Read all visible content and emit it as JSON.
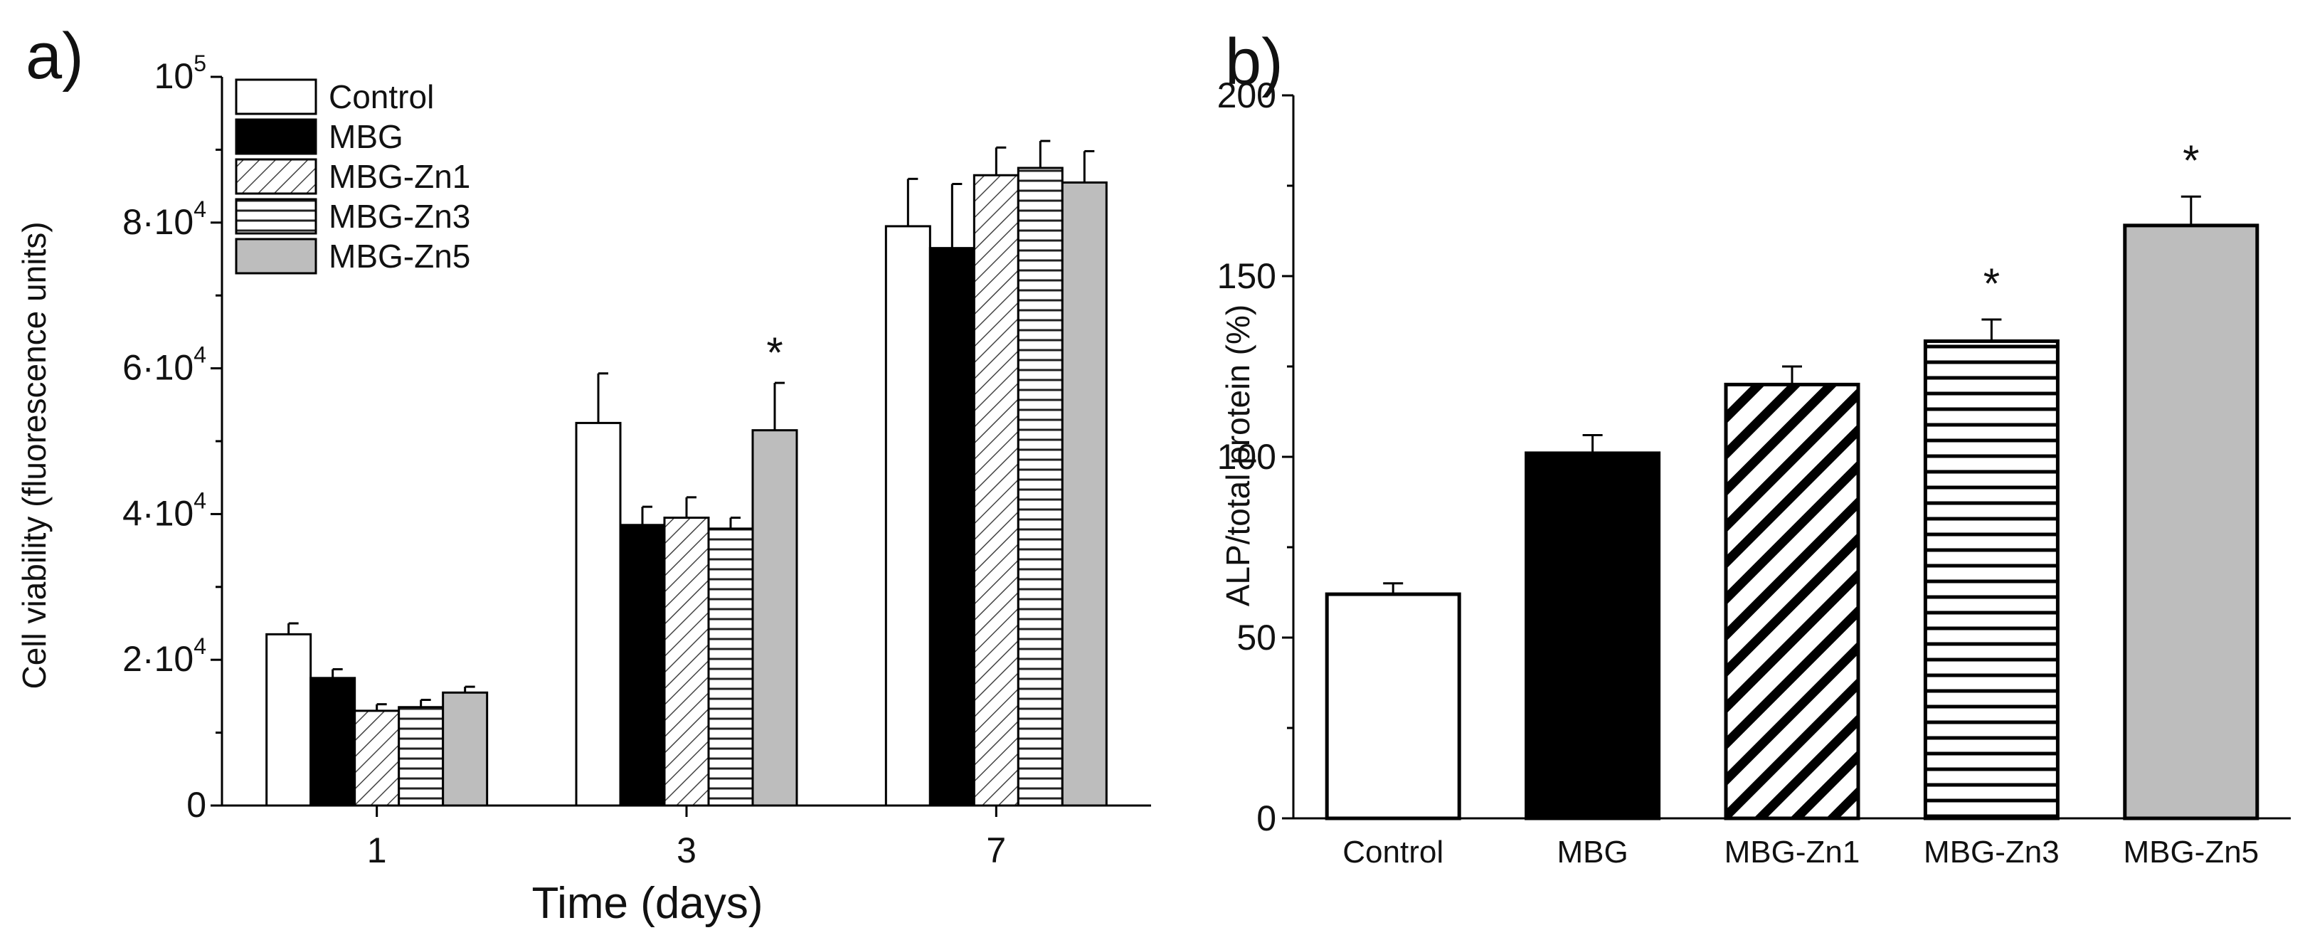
{
  "panels": {
    "a": {
      "label": "a)"
    },
    "b": {
      "label": "b)"
    }
  },
  "chart_data": [
    {
      "type": "bar",
      "panel": "a",
      "xlabel": "Time (days)",
      "ylabel": "Cell viability (fluorescence units)",
      "ylim": [
        0,
        100000
      ],
      "yticks": [
        {
          "value": 0,
          "mantissa": "0",
          "exp": ""
        },
        {
          "value": 20000,
          "mantissa": "2·10",
          "exp": "4"
        },
        {
          "value": 40000,
          "mantissa": "4·10",
          "exp": "4"
        },
        {
          "value": 60000,
          "mantissa": "6·10",
          "exp": "4"
        },
        {
          "value": 80000,
          "mantissa": "8·10",
          "exp": "4"
        },
        {
          "value": 100000,
          "mantissa": "10",
          "exp": "5"
        }
      ],
      "categories": [
        "1",
        "3",
        "7"
      ],
      "series": [
        {
          "name": "Control",
          "fill": "white",
          "values": [
            23500,
            52500,
            79500
          ],
          "errors": [
            1500,
            6800,
            6500
          ]
        },
        {
          "name": "MBG",
          "fill": "black",
          "values": [
            17500,
            38500,
            76500
          ],
          "errors": [
            1200,
            2500,
            8800
          ]
        },
        {
          "name": "MBG-Zn1",
          "fill": "diag",
          "values": [
            13000,
            39500,
            86500
          ],
          "errors": [
            900,
            2800,
            3800
          ]
        },
        {
          "name": "MBG-Zn3",
          "fill": "horiz",
          "values": [
            13500,
            38000,
            87500
          ],
          "errors": [
            1000,
            1500,
            3700
          ]
        },
        {
          "name": "MBG-Zn5",
          "fill": "gray",
          "values": [
            15500,
            51500,
            85500
          ],
          "errors": [
            800,
            6500,
            4300
          ]
        }
      ],
      "annotations": [
        {
          "text": "*",
          "category": "3",
          "series": "MBG-Zn5"
        }
      ],
      "legend": "top-left"
    },
    {
      "type": "bar",
      "panel": "b",
      "xlabel": "",
      "ylabel": "ALP/total protein (%)",
      "ylim": [
        0,
        200
      ],
      "yticks": [
        0,
        50,
        100,
        150,
        200
      ],
      "categories": [
        "Control",
        "MBG",
        "MBG-Zn1",
        "MBG-Zn3",
        "MBG-Zn5"
      ],
      "fills": [
        "white",
        "black",
        "diag-bold",
        "horiz-bold",
        "gray"
      ],
      "values": [
        62,
        101,
        120,
        132,
        164
      ],
      "errors": [
        3,
        5,
        5,
        6,
        8
      ],
      "annotations": [
        {
          "text": "*",
          "category": "MBG-Zn3"
        },
        {
          "text": "*",
          "category": "MBG-Zn5"
        }
      ]
    }
  ]
}
